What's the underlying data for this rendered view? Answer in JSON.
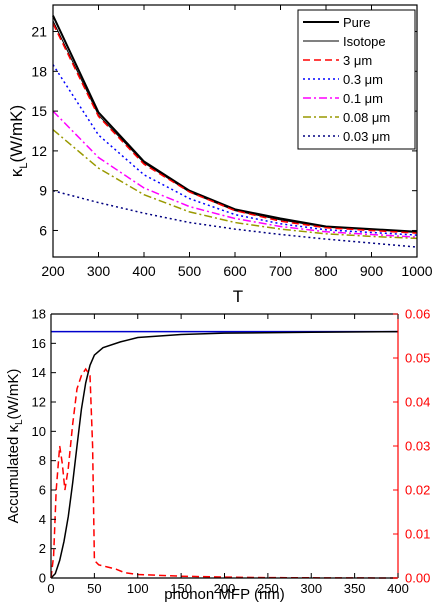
{
  "chart_data": [
    {
      "type": "line",
      "xlabel": "T",
      "ylabel_main": "κ",
      "ylabel_sub": "L",
      "ylabel_unit": "(W/mK)",
      "xlim": [
        200,
        1000
      ],
      "ylim": [
        4,
        23
      ],
      "xticks": [
        200,
        300,
        400,
        500,
        600,
        700,
        800,
        900,
        1000
      ],
      "yticks": [
        6,
        9,
        12,
        15,
        18,
        21
      ],
      "legend_position": "top-right",
      "x": [
        200,
        300,
        400,
        500,
        600,
        700,
        800,
        900,
        1000
      ],
      "series": [
        {
          "name": "Pure",
          "color": "#000000",
          "dash": "solid",
          "width": 2,
          "values": [
            22.2,
            14.9,
            11.2,
            9.0,
            7.6,
            6.9,
            6.3,
            6.1,
            5.9
          ]
        },
        {
          "name": "Isotope",
          "color": "#000000",
          "dash": "solid",
          "width": 1,
          "values": [
            21.8,
            14.7,
            11.1,
            8.9,
            7.5,
            6.8,
            6.25,
            6.05,
            5.85
          ]
        },
        {
          "name": "3 μm",
          "color": "#ff0000",
          "dash": "dashed",
          "width": 1.5,
          "values": [
            21.6,
            14.6,
            11.0,
            8.9,
            7.5,
            6.7,
            6.2,
            6.0,
            5.8
          ]
        },
        {
          "name": "0.3 μm",
          "color": "#0000ff",
          "dash": "dotted",
          "width": 1.5,
          "values": [
            18.5,
            13.2,
            10.2,
            8.4,
            7.2,
            6.5,
            6.05,
            5.85,
            5.65
          ]
        },
        {
          "name": "0.1 μm",
          "color": "#ff00ff",
          "dash": "dashdot",
          "width": 1.5,
          "values": [
            15.0,
            11.5,
            9.2,
            7.8,
            6.9,
            6.3,
            5.9,
            5.7,
            5.5
          ]
        },
        {
          "name": "0.08 μm",
          "color": "#999900",
          "dash": "dashdot",
          "width": 1.5,
          "values": [
            13.6,
            10.7,
            8.7,
            7.4,
            6.6,
            6.1,
            5.75,
            5.55,
            5.4
          ]
        },
        {
          "name": "0.03 μm",
          "color": "#000080",
          "dash": "dotted",
          "width": 1.5,
          "values": [
            9.0,
            8.1,
            7.3,
            6.6,
            6.1,
            5.7,
            5.35,
            5.05,
            4.75
          ]
        }
      ]
    },
    {
      "type": "line",
      "xlabel": "phonon MFP (nm)",
      "ylabel_main": "Accumulated κ",
      "ylabel_sub": "L",
      "ylabel_unit": "(W/mK)",
      "xlim": [
        0,
        400
      ],
      "ylim": [
        0,
        18
      ],
      "y2lim": [
        0,
        0.06
      ],
      "xticks": [
        0,
        50,
        100,
        150,
        200,
        250,
        300,
        350,
        400
      ],
      "yticks": [
        0,
        2,
        4,
        6,
        8,
        10,
        12,
        14,
        16,
        18
      ],
      "y2ticks": [
        0.0,
        0.01,
        0.02,
        0.03,
        0.04,
        0.05,
        0.06
      ],
      "y2tick_labels": [
        "0.00",
        "0.01",
        "0.02",
        "0.03",
        "0.04",
        "0.05",
        "0.06"
      ],
      "series": [
        {
          "axis": "left",
          "color": "#0000cc",
          "dash": "solid",
          "width": 1.5,
          "x": [
            0,
            400
          ],
          "values": [
            16.8,
            16.8
          ]
        },
        {
          "axis": "left",
          "color": "#000000",
          "dash": "solid",
          "width": 1.5,
          "x": [
            0,
            5,
            10,
            15,
            20,
            25,
            30,
            35,
            40,
            45,
            50,
            60,
            80,
            100,
            150,
            200,
            300,
            400
          ],
          "values": [
            0,
            0.3,
            1.2,
            2.5,
            4.2,
            6.5,
            9.0,
            11.5,
            13.3,
            14.5,
            15.2,
            15.7,
            16.1,
            16.4,
            16.6,
            16.7,
            16.75,
            16.8
          ]
        },
        {
          "axis": "right",
          "color": "#ff0000",
          "dash": "dashed",
          "width": 1.5,
          "x": [
            0,
            3,
            6,
            10,
            13,
            16,
            20,
            25,
            30,
            35,
            40,
            45,
            48,
            50,
            55,
            65,
            75,
            85,
            100,
            150,
            200,
            250,
            300,
            400
          ],
          "values": [
            0,
            0.005,
            0.02,
            0.03,
            0.026,
            0.02,
            0.025,
            0.035,
            0.043,
            0.046,
            0.0475,
            0.046,
            0.03,
            0.004,
            0.003,
            0.0025,
            0.002,
            0.0012,
            0.0008,
            0.0004,
            0.0002,
            0.0001,
            5e-05,
            0
          ]
        }
      ]
    }
  ]
}
